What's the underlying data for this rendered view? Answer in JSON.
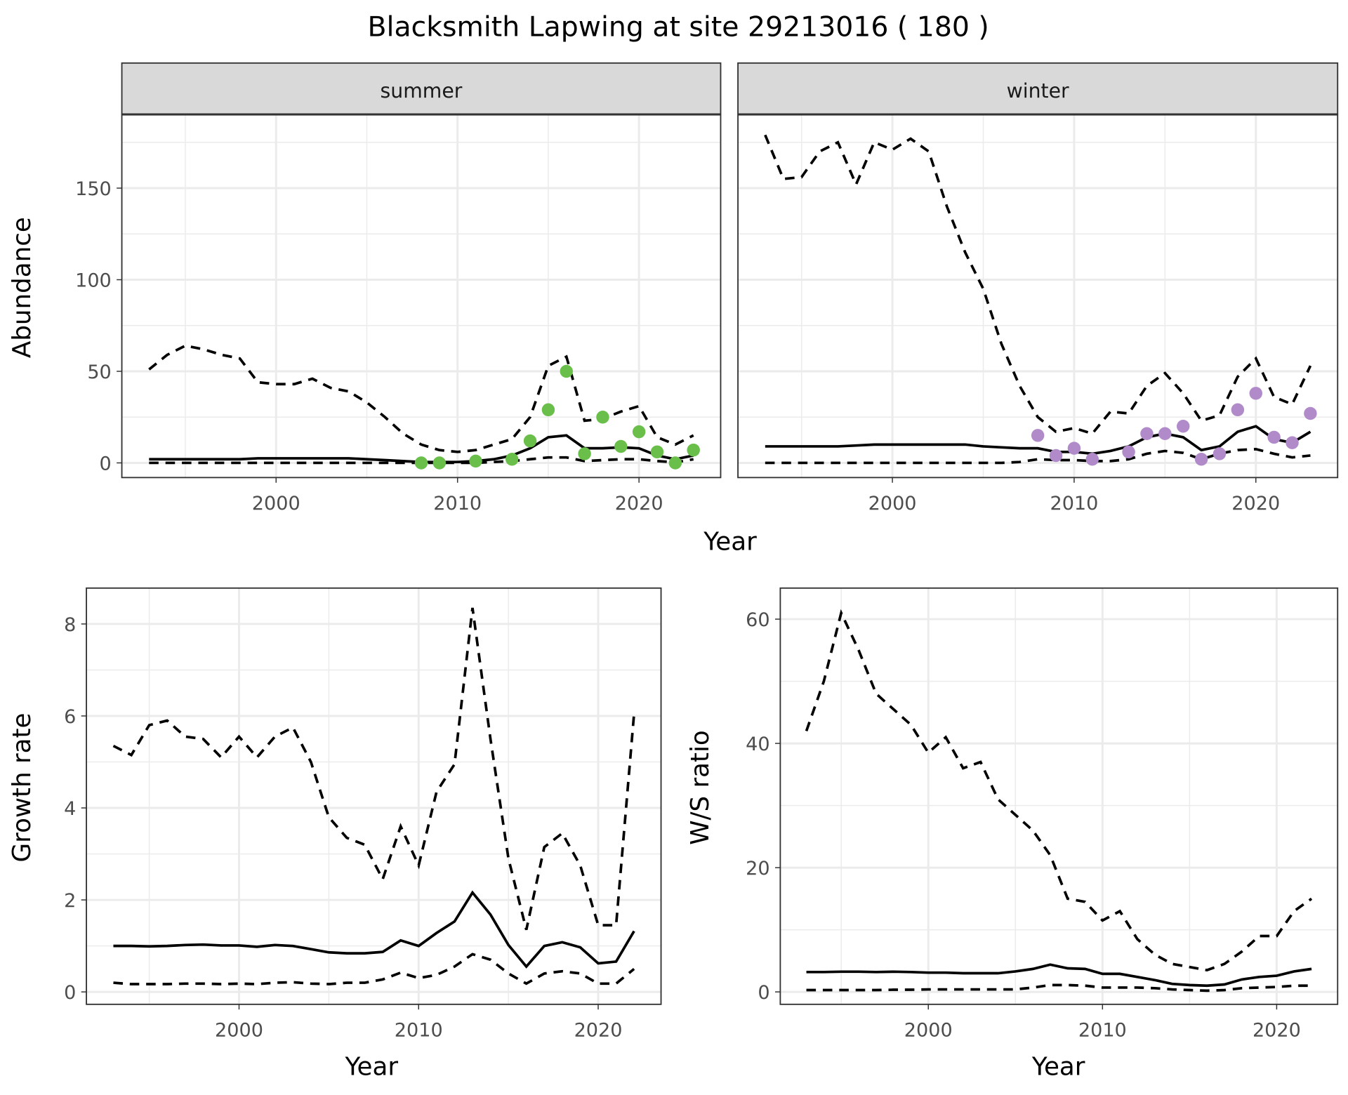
{
  "title": "Blacksmith Lapwing at site 29213016 ( 180 )",
  "colors": {
    "summer_points": "#6abf4b",
    "winter_points": "#b18bc9",
    "lines": "#000000",
    "strip_bg": "#d9d9d9",
    "grid": "#ebebeb"
  },
  "chart_data": [
    {
      "type": "line",
      "panel": "summer",
      "strip_label": "summer",
      "ylabel": "Abundance",
      "xlabel": "Year",
      "xlim": [
        1991.5,
        2024.5
      ],
      "ylim": [
        -8,
        190
      ],
      "xticks": [
        2000,
        2010,
        2020
      ],
      "yticks": [
        0,
        50,
        100,
        150
      ],
      "x": [
        1993,
        1994,
        1995,
        1996,
        1997,
        1998,
        1999,
        2000,
        2001,
        2002,
        2003,
        2004,
        2005,
        2006,
        2007,
        2008,
        2009,
        2010,
        2011,
        2012,
        2013,
        2014,
        2015,
        2016,
        2017,
        2018,
        2019,
        2020,
        2021,
        2022,
        2023
      ],
      "upper": [
        51,
        59,
        64,
        62,
        59,
        57,
        44,
        43,
        43,
        46,
        41,
        39,
        33,
        25,
        16,
        10,
        7,
        6,
        7,
        10,
        13,
        25,
        53,
        58,
        23,
        24,
        28,
        31,
        14,
        10,
        15
      ],
      "estimate": [
        2,
        2,
        2,
        2,
        2,
        2,
        2.5,
        2.5,
        2.5,
        2.5,
        2.5,
        2.5,
        2,
        1.5,
        1,
        0.5,
        0.5,
        0.5,
        1,
        2,
        4,
        8,
        14,
        15,
        8,
        8,
        8.5,
        8,
        4,
        2,
        4
      ],
      "lower": [
        0,
        0,
        0,
        0,
        0,
        0,
        0,
        0,
        0,
        0,
        0,
        0,
        0,
        0,
        0,
        0,
        0,
        0,
        0,
        0.5,
        1,
        2,
        3,
        3,
        1,
        1.5,
        2,
        2,
        1,
        0.3,
        2
      ],
      "points": {
        "x": [
          2008,
          2009,
          2011,
          2013,
          2014,
          2015,
          2016,
          2017,
          2018,
          2019,
          2020,
          2021,
          2022,
          2023
        ],
        "y": [
          0,
          0,
          1,
          2,
          12,
          29,
          50,
          5,
          25,
          9,
          17,
          6,
          0,
          7
        ]
      }
    },
    {
      "type": "line",
      "panel": "winter",
      "strip_label": "winter",
      "xlabel": "Year",
      "xlim": [
        1991.5,
        2024.5
      ],
      "ylim": [
        -8,
        190
      ],
      "xticks": [
        2000,
        2010,
        2020
      ],
      "yticks": [
        0,
        50,
        100,
        150
      ],
      "x": [
        1993,
        1994,
        1995,
        1996,
        1997,
        1998,
        1999,
        2000,
        2001,
        2002,
        2003,
        2004,
        2005,
        2006,
        2007,
        2008,
        2009,
        2010,
        2011,
        2012,
        2013,
        2014,
        2015,
        2016,
        2017,
        2018,
        2019,
        2020,
        2021,
        2022,
        2023
      ],
      "upper": [
        179,
        155,
        156,
        170,
        175,
        152,
        175,
        171,
        177,
        170,
        140,
        115,
        95,
        65,
        42,
        25,
        17,
        19,
        16,
        28,
        27,
        42,
        49,
        38,
        23,
        26,
        47,
        57,
        36,
        32,
        53
      ],
      "estimate": [
        9,
        9,
        9,
        9,
        9,
        9.5,
        10,
        10,
        10,
        10,
        10,
        10,
        9,
        8.5,
        8,
        8,
        6,
        6,
        5,
        6.5,
        9,
        14,
        16,
        14,
        7,
        9,
        17,
        20,
        13,
        11,
        17
      ],
      "lower": [
        0,
        0,
        0,
        0,
        0,
        0,
        0,
        0,
        0,
        0,
        0,
        0,
        0,
        0,
        0.5,
        2,
        1.5,
        1.5,
        1,
        1,
        2,
        5,
        6.5,
        5.5,
        2,
        5,
        7,
        7.5,
        5,
        3,
        4
      ],
      "points": {
        "x": [
          2008,
          2009,
          2010,
          2011,
          2013,
          2014,
          2015,
          2016,
          2017,
          2018,
          2019,
          2020,
          2021,
          2022,
          2023
        ],
        "y": [
          15,
          4,
          8,
          2,
          6,
          16,
          16,
          20,
          2,
          5,
          29,
          38,
          14,
          11,
          27
        ]
      }
    },
    {
      "type": "line",
      "panel": "growth",
      "ylabel": "Growth rate",
      "xlabel": "Year",
      "xlim": [
        1991.5,
        2023.5
      ],
      "ylim": [
        -0.27,
        8.78
      ],
      "xticks": [
        2000,
        2010,
        2020
      ],
      "yticks": [
        0,
        2,
        4,
        6,
        8
      ],
      "x": [
        1993,
        1994,
        1995,
        1996,
        1997,
        1998,
        1999,
        2000,
        2001,
        2002,
        2003,
        2004,
        2005,
        2006,
        2007,
        2008,
        2009,
        2010,
        2011,
        2012,
        2013,
        2014,
        2015,
        2016,
        2017,
        2018,
        2019,
        2020,
        2021,
        2022
      ],
      "upper": [
        5.35,
        5.15,
        5.8,
        5.9,
        5.55,
        5.5,
        5.1,
        5.55,
        5.1,
        5.55,
        5.75,
        5.0,
        3.8,
        3.35,
        3.2,
        2.45,
        3.6,
        2.75,
        4.35,
        4.95,
        8.35,
        5.5,
        2.9,
        1.35,
        3.15,
        3.45,
        2.75,
        1.45,
        1.45,
        6.05
      ],
      "estimate": [
        1.0,
        1.0,
        0.99,
        1.0,
        1.02,
        1.03,
        1.01,
        1.01,
        0.98,
        1.02,
        1.0,
        0.93,
        0.86,
        0.84,
        0.84,
        0.87,
        1.12,
        1.0,
        1.28,
        1.53,
        2.16,
        1.68,
        1.02,
        0.55,
        1.0,
        1.08,
        0.97,
        0.62,
        0.66,
        1.32
      ],
      "lower": [
        0.2,
        0.17,
        0.17,
        0.17,
        0.18,
        0.18,
        0.17,
        0.18,
        0.17,
        0.2,
        0.21,
        0.18,
        0.17,
        0.2,
        0.2,
        0.27,
        0.42,
        0.3,
        0.37,
        0.55,
        0.82,
        0.7,
        0.4,
        0.18,
        0.4,
        0.45,
        0.4,
        0.18,
        0.18,
        0.5
      ]
    },
    {
      "type": "line",
      "panel": "ratio",
      "ylabel": "W/S ratio",
      "xlabel": "Year",
      "xlim": [
        1991.5,
        2023.5
      ],
      "ylim": [
        -2,
        65
      ],
      "xticks": [
        2000,
        2010,
        2020
      ],
      "yticks": [
        0,
        20,
        40,
        60
      ],
      "x": [
        1993,
        1994,
        1995,
        1996,
        1997,
        1998,
        1999,
        2000,
        2001,
        2002,
        2003,
        2004,
        2005,
        2006,
        2007,
        2008,
        2009,
        2010,
        2011,
        2012,
        2013,
        2014,
        2015,
        2016,
        2017,
        2018,
        2019,
        2020,
        2021,
        2022
      ],
      "upper": [
        42,
        50,
        61,
        55,
        48,
        45.5,
        43,
        38.5,
        41,
        36,
        37,
        31,
        28.5,
        26,
        22,
        15,
        14.5,
        11.5,
        13,
        8.5,
        6,
        4.5,
        4,
        3.5,
        4.5,
        6.5,
        9,
        9,
        13,
        15
      ],
      "estimate": [
        3.2,
        3.2,
        3.25,
        3.25,
        3.2,
        3.25,
        3.2,
        3.1,
        3.1,
        3.0,
        3.0,
        3.0,
        3.3,
        3.7,
        4.4,
        3.8,
        3.7,
        2.9,
        2.9,
        2.4,
        1.9,
        1.3,
        1.1,
        1.0,
        1.2,
        2.0,
        2.4,
        2.6,
        3.3,
        3.7
      ],
      "lower": [
        0.3,
        0.3,
        0.3,
        0.3,
        0.3,
        0.35,
        0.35,
        0.4,
        0.4,
        0.4,
        0.4,
        0.4,
        0.4,
        0.7,
        1.1,
        1.1,
        1.0,
        0.7,
        0.7,
        0.7,
        0.6,
        0.4,
        0.3,
        0.2,
        0.3,
        0.6,
        0.7,
        0.8,
        1.0,
        1.0
      ]
    }
  ]
}
